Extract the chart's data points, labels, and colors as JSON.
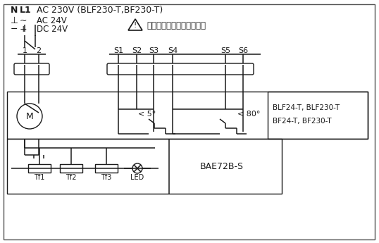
{
  "bg_color": "#ffffff",
  "line_color": "#1a1a1a",
  "text_color": "#1a1a1a",
  "line1_N": "N",
  "line1_L1": "L1",
  "line1_rest": "AC 230V (BLF230-T,BF230-T)",
  "sym_gnd": "⊥",
  "sym_ac": "~",
  "sym_dc_n": "−",
  "sym_dc_p": "+",
  "text_ac24": "AC 24V",
  "text_dc24": "DC 24V",
  "warning_text": "通过安全隔离的变压器连接",
  "labels_12": [
    "1",
    "2"
  ],
  "labels_s": [
    "S1",
    "S2",
    "S3",
    "S4",
    "S5",
    "S6"
  ],
  "angle1": "< 5°",
  "angle2": "< 80°",
  "model_text1": "BLF24-T, BLF230-T",
  "model_text2": "BF24-T, BF230-T",
  "bae_label": "BAE72B-S",
  "tf_labels": [
    "Tf1",
    "Tf2",
    "Tf3",
    "LED"
  ]
}
